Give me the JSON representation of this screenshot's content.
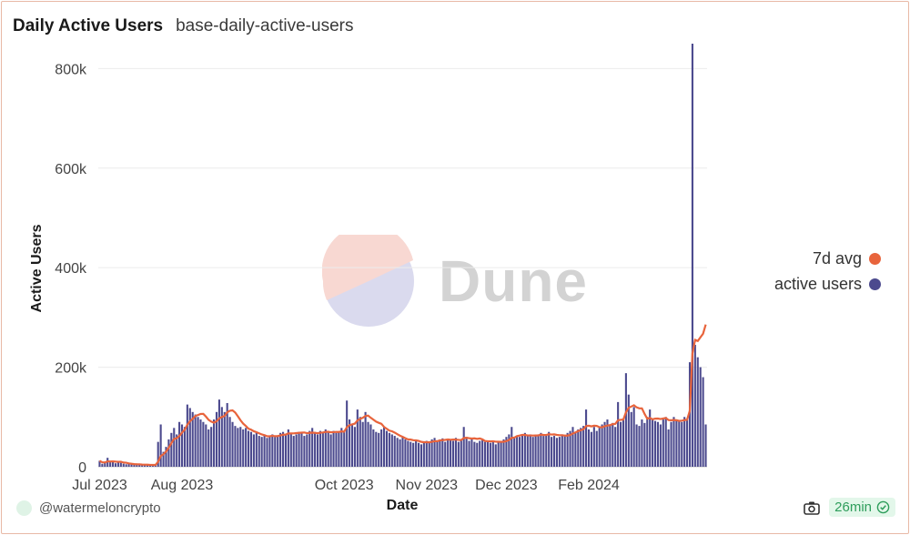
{
  "header": {
    "title": "Daily Active Users",
    "subtitle": "base-daily-active-users"
  },
  "legend": [
    {
      "label": "7d avg",
      "color": "#e8643c"
    },
    {
      "label": "active users",
      "color": "#4c4a8e"
    }
  ],
  "watermark": {
    "text": "Dune"
  },
  "footer": {
    "handle": "@watermeloncrypto",
    "age": "26min"
  },
  "chart_data": {
    "type": "bar",
    "xlabel": "Date",
    "ylabel": "Active Users",
    "ylim": [
      0,
      850000
    ],
    "y_ticks": [
      "0",
      "200k",
      "400k",
      "600k",
      "800k"
    ],
    "y_tick_values": [
      0,
      200000,
      400000,
      600000,
      800000
    ],
    "x_ticks": [
      "Jul 2023",
      "Aug 2023",
      "Oct 2023",
      "Nov 2023",
      "Dec 2023",
      "Feb 2024"
    ],
    "x_tick_days": [
      0,
      31,
      92,
      123,
      153,
      184
    ],
    "legend_position": "right",
    "grid": true,
    "colors": {
      "bars": "#4c4a8e",
      "avg": "#e8643c"
    },
    "series": [
      {
        "name": "active users",
        "type": "bar",
        "values": [
          12000,
          6000,
          8000,
          18000,
          9000,
          12000,
          7000,
          9000,
          8000,
          6000,
          5000,
          6000,
          5000,
          4000,
          4000,
          5000,
          4000,
          3000,
          4000,
          3000,
          2000,
          3000,
          50000,
          85000,
          30000,
          40000,
          55000,
          68000,
          78000,
          65000,
          90000,
          85000,
          80000,
          125000,
          118000,
          110000,
          105000,
          100000,
          95000,
          90000,
          85000,
          75000,
          80000,
          95000,
          110000,
          135000,
          120000,
          110000,
          128000,
          100000,
          90000,
          82000,
          78000,
          80000,
          75000,
          78000,
          72000,
          70000,
          65000,
          68000,
          62000,
          60000,
          65000,
          58000,
          62000,
          65000,
          60000,
          62000,
          68000,
          70000,
          65000,
          75000,
          68000,
          62000,
          65000,
          70000,
          68000,
          62000,
          65000,
          72000,
          78000,
          70000,
          65000,
          72000,
          68000,
          75000,
          70000,
          65000,
          72000,
          68000,
          70000,
          78000,
          70000,
          133000,
          95000,
          85000,
          80000,
          115000,
          100000,
          90000,
          110000,
          90000,
          85000,
          75000,
          70000,
          68000,
          75000,
          80000,
          72000,
          68000,
          65000,
          62000,
          58000,
          55000,
          60000,
          55000,
          52000,
          50000,
          48000,
          52000,
          48000,
          45000,
          50000,
          52000,
          48000,
          55000,
          58000,
          52000,
          55000,
          57000,
          50000,
          55000,
          53000,
          52000,
          58000,
          50000,
          55000,
          80000,
          60000,
          52000,
          55000,
          50000,
          48000,
          52000,
          55000,
          50000,
          52000,
          48000,
          50000,
          45000,
          52000,
          50000,
          55000,
          60000,
          65000,
          80000,
          58000,
          62000,
          60000,
          65000,
          68000,
          62000,
          65000,
          60000,
          62000,
          65000,
          68000,
          62000,
          65000,
          70000,
          60000,
          62000,
          58000,
          60000,
          65000,
          62000,
          68000,
          72000,
          80000,
          70000,
          75000,
          78000,
          82000,
          115000,
          75000,
          70000,
          80000,
          72000,
          78000,
          85000,
          90000,
          95000,
          85000,
          88000,
          80000,
          130000,
          90000,
          95000,
          188000,
          145000,
          110000,
          120000,
          85000,
          82000,
          95000,
          88000,
          100000,
          115000,
          95000,
          92000,
          90000,
          85000,
          95000,
          100000,
          75000,
          90000,
          100000,
          95000,
          92000,
          90000,
          100000,
          95000,
          210000,
          850000,
          245000,
          220000,
          200000,
          180000,
          85000
        ]
      },
      {
        "name": "7d avg",
        "type": "line",
        "values": [
          12000,
          9000,
          8700,
          10750,
          10600,
          10800,
          10300,
          9900,
          10100,
          8400,
          8100,
          6700,
          6100,
          5300,
          5000,
          4900,
          4400,
          4200,
          4100,
          3800,
          3700,
          3600,
          9900,
          21700,
          25000,
          30500,
          38200,
          47400,
          55900,
          57300,
          61700,
          68700,
          74400,
          84400,
          91400,
          96300,
          101900,
          104000,
          106100,
          106300,
          100700,
          94300,
          90700,
          88600,
          91400,
          97100,
          100000,
          102100,
          109300,
          112600,
          113300,
          109000,
          101400,
          93400,
          86700,
          81900,
          76400,
          74500,
          71400,
          69500,
          67200,
          64900,
          63500,
          61500,
          61300,
          62200,
          61400,
          61700,
          62900,
          64400,
          64600,
          66900,
          66900,
          67100,
          67600,
          68100,
          68500,
          68800,
          67500,
          68100,
          68600,
          68200,
          67400,
          68400,
          68900,
          70000,
          70400,
          69300,
          69600,
          70000,
          69900,
          71000,
          70400,
          79400,
          83600,
          85100,
          86600,
          93100,
          96100,
          98400,
          102000,
          102700,
          98400,
          94600,
          90600,
          88300,
          86300,
          80000,
          76300,
          72600,
          71300,
          68600,
          65400,
          62400,
          60100,
          57300,
          55100,
          54600,
          53300,
          53000,
          52000,
          50000,
          49400,
          49300,
          49100,
          50100,
          51300,
          51400,
          52900,
          53600,
          53900,
          54900,
          54300,
          54600,
          54500,
          54000,
          53700,
          57600,
          58300,
          57400,
          56700,
          57100,
          56000,
          56900,
          55000,
          51700,
          51300,
          51000,
          51300,
          50400,
          50300,
          50100,
          50300,
          51400,
          53900,
          58100,
          58600,
          61700,
          62700,
          64000,
          64000,
          63000,
          63000,
          62700,
          62900,
          63000,
          64400,
          64000,
          63900,
          65300,
          64800,
          65100,
          64000,
          63400,
          63400,
          62600,
          62600,
          63900,
          66800,
          69000,
          71600,
          73400,
          75300,
          81800,
          82500,
          81200,
          82500,
          82000,
          79600,
          79200,
          81400,
          82900,
          83600,
          85700,
          86300,
          93400,
          94300,
          94900,
          109600,
          118500,
          121000,
          123600,
          119400,
          117300,
          117300,
          106100,
          96600,
          97900,
          95300,
          96700,
          96900,
          95900,
          97000,
          97900,
          93800,
          93500,
          93900,
          93500,
          92100,
          92700,
          93700,
          94600,
          112500,
          228000,
          255000,
          252700,
          260100,
          267400,
          285700
        ]
      }
    ]
  }
}
